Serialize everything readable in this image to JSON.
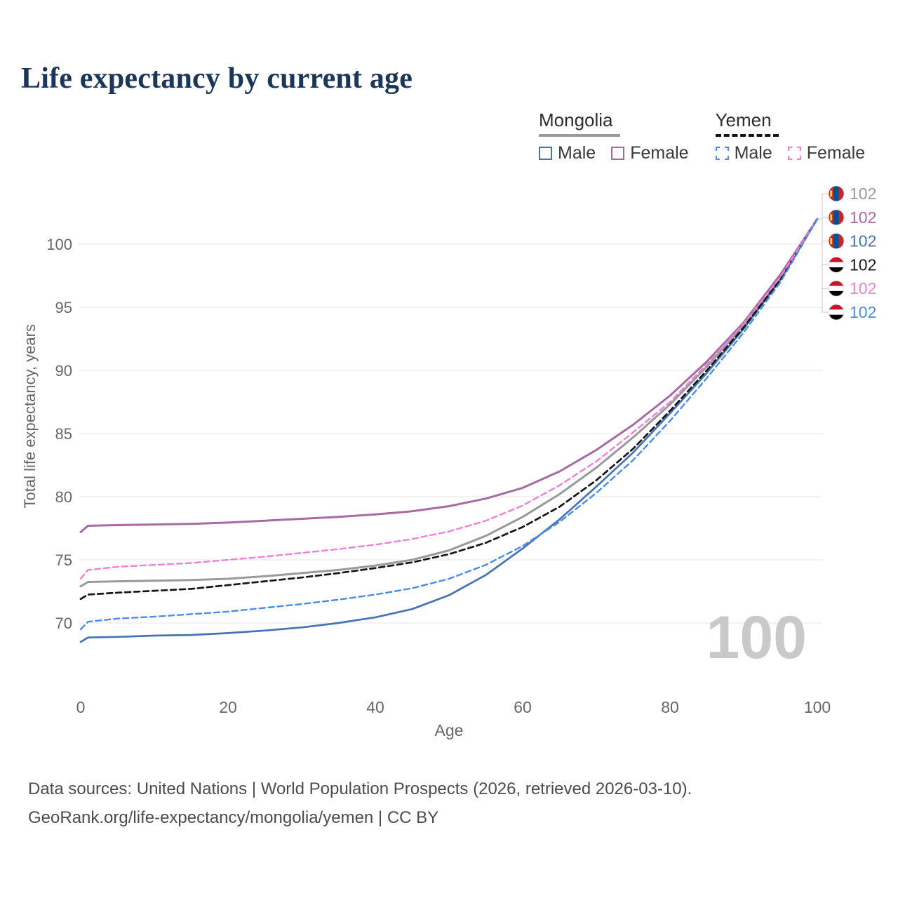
{
  "title": "Life expectancy by current age",
  "legend": {
    "groups": [
      {
        "label": "Mongolia",
        "line_style": "solid",
        "line_color": "#9a9a9a",
        "items": [
          {
            "label": "Male",
            "color": "#4673b5",
            "dashed": false
          },
          {
            "label": "Female",
            "color": "#a86aa4",
            "dashed": false
          }
        ]
      },
      {
        "label": "Yemen",
        "line_style": "dashed",
        "line_color": "#141414",
        "items": [
          {
            "label": "Male",
            "color": "#4a8de8",
            "dashed": true
          },
          {
            "label": "Female",
            "color": "#ef7fd9",
            "dashed": true
          }
        ]
      }
    ]
  },
  "chart_data": {
    "type": "line",
    "title": "Life expectancy by current age",
    "xlabel": "Age",
    "ylabel": "Total life expectancy, years",
    "xlim": [
      0,
      100
    ],
    "ylim": [
      64,
      105
    ],
    "x_ticks": [
      0,
      20,
      40,
      60,
      80,
      100
    ],
    "y_ticks": [
      70,
      75,
      80,
      85,
      90,
      95,
      100
    ],
    "grid": "horizontal",
    "legend_position": "top-right",
    "watermark": "100",
    "x": [
      0,
      1,
      5,
      10,
      15,
      20,
      25,
      30,
      35,
      40,
      45,
      50,
      55,
      60,
      65,
      70,
      75,
      80,
      85,
      90,
      95,
      100
    ],
    "series": [
      {
        "id": "mongolia-both",
        "name": "Mongolia",
        "color": "#9a9a9a",
        "dashed": false,
        "width": 3,
        "values": [
          72.9,
          73.25,
          73.3,
          73.35,
          73.4,
          73.5,
          73.7,
          73.95,
          74.2,
          74.55,
          75.0,
          75.75,
          76.9,
          78.4,
          80.2,
          82.3,
          84.7,
          87.3,
          90.3,
          93.6,
          97.4,
          102
        ]
      },
      {
        "id": "mongolia-female",
        "name": "Mongolia Female",
        "color": "#a86aa4",
        "dashed": false,
        "width": 3,
        "values": [
          77.2,
          77.7,
          77.75,
          77.8,
          77.85,
          77.95,
          78.1,
          78.25,
          78.4,
          78.6,
          78.85,
          79.25,
          79.85,
          80.7,
          82.0,
          83.7,
          85.7,
          88.0,
          90.7,
          93.8,
          97.6,
          102
        ]
      },
      {
        "id": "mongolia-male",
        "name": "Mongolia Male",
        "color": "#4673b5",
        "dashed": false,
        "width": 2.7,
        "values": [
          68.5,
          68.85,
          68.9,
          69.0,
          69.05,
          69.2,
          69.4,
          69.65,
          70.0,
          70.45,
          71.1,
          72.2,
          73.8,
          75.9,
          78.2,
          80.8,
          83.5,
          86.6,
          89.8,
          93.3,
          97.2,
          102
        ]
      },
      {
        "id": "yemen-both",
        "name": "Yemen",
        "color": "#161616",
        "dashed": true,
        "width": 2.7,
        "values": [
          71.9,
          72.25,
          72.4,
          72.55,
          72.7,
          73.0,
          73.3,
          73.6,
          73.95,
          74.35,
          74.8,
          75.45,
          76.35,
          77.6,
          79.2,
          81.3,
          83.8,
          86.8,
          90.0,
          93.4,
          97.2,
          102
        ]
      },
      {
        "id": "yemen-female",
        "name": "Yemen Female",
        "color": "#ef7fd9",
        "dashed": true,
        "width": 2.4,
        "values": [
          73.5,
          74.2,
          74.45,
          74.6,
          74.75,
          75.0,
          75.25,
          75.55,
          75.85,
          76.2,
          76.65,
          77.25,
          78.1,
          79.3,
          80.9,
          82.8,
          85.1,
          87.5,
          90.5,
          93.7,
          97.4,
          102
        ]
      },
      {
        "id": "yemen-male",
        "name": "Yemen Male",
        "color": "#4a8de8",
        "dashed": true,
        "width": 2.4,
        "values": [
          69.5,
          70.1,
          70.35,
          70.5,
          70.7,
          70.9,
          71.2,
          71.5,
          71.85,
          72.25,
          72.75,
          73.5,
          74.6,
          76.1,
          78.0,
          80.3,
          82.9,
          86.0,
          89.4,
          93.0,
          97.0,
          102
        ]
      }
    ],
    "end_labels": [
      {
        "country": "Mongolia",
        "flag": "mongolia",
        "value": "102",
        "color": "#9a9a9a"
      },
      {
        "country": "Mongolia",
        "flag": "mongolia",
        "value": "102",
        "color": "#a86aa4"
      },
      {
        "country": "Mongolia",
        "flag": "mongolia",
        "value": "102",
        "color": "#4673b5"
      },
      {
        "country": "Yemen",
        "flag": "yemen",
        "value": "102",
        "color": "#1a1a1a"
      },
      {
        "country": "Yemen",
        "flag": "yemen",
        "value": "102",
        "color": "#ef7fd9"
      },
      {
        "country": "Yemen",
        "flag": "yemen",
        "value": "102",
        "color": "#4a8de8"
      }
    ],
    "flag_colors": {
      "mongolia_red": "#c4272f",
      "mongolia_blue": "#015197",
      "mongolia_yellow": "#f9cf02",
      "yemen_red": "#ce1126",
      "yemen_white": "#ffffff",
      "yemen_black": "#000000"
    }
  },
  "footer": {
    "line1": "Data sources: United Nations | World Population Prospects (2026, retrieved 2026-03-10).",
    "line2": "GeoRank.org/life-expectancy/mongolia/yemen | CC BY"
  }
}
